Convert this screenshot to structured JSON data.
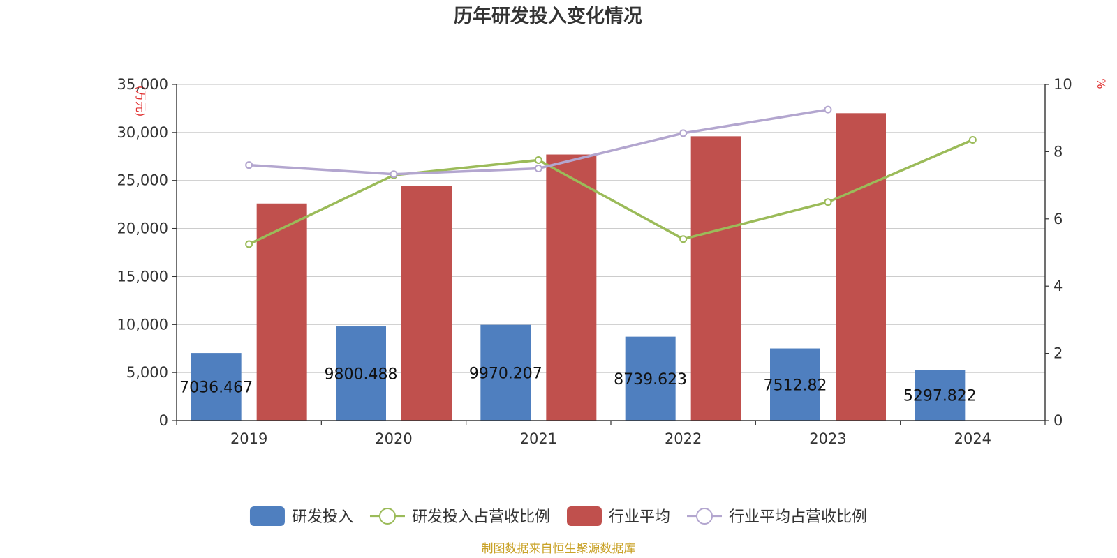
{
  "chart_data": {
    "type": "bar",
    "title": "历年研发投入变化情况",
    "categories": [
      "2019",
      "2020",
      "2021",
      "2022",
      "2023",
      "2024"
    ],
    "left_axis": {
      "unit": "(万元)",
      "ylim": [
        0,
        35000
      ],
      "ticks": [
        "0",
        "5,000",
        "10,000",
        "15,000",
        "20,000",
        "25,000",
        "30,000",
        "35,000"
      ]
    },
    "right_axis": {
      "unit": "%",
      "ylim": [
        0,
        10
      ],
      "ticks": [
        "0",
        "2",
        "4",
        "6",
        "8",
        "10"
      ]
    },
    "grid": true,
    "legend_position": "bottom",
    "series": [
      {
        "name": "研发投入",
        "type": "bar",
        "axis": "left",
        "color": "#4f7fbf",
        "values": [
          7036.467,
          9800.488,
          9970.207,
          8739.623,
          7512.82,
          5297.822
        ],
        "labels": [
          "7036.467",
          "9800.488",
          "9970.207",
          "8739.623",
          "7512.82",
          "5297.822"
        ]
      },
      {
        "name": "研发投入占营收比例",
        "type": "line",
        "axis": "right",
        "color": "#9bbb59",
        "values": [
          5.25,
          7.3,
          7.75,
          5.4,
          6.5,
          8.35
        ]
      },
      {
        "name": "行业平均",
        "type": "bar",
        "axis": "left",
        "color": "#c0504d",
        "values": [
          22600,
          24400,
          27700,
          29600,
          32000,
          null
        ]
      },
      {
        "name": "行业平均占营收比例",
        "type": "line",
        "axis": "right",
        "color": "#b3a6cf",
        "values": [
          7.6,
          7.33,
          7.5,
          8.55,
          9.25,
          null
        ]
      }
    ]
  },
  "source_note": "制图数据来自恒生聚源数据库"
}
